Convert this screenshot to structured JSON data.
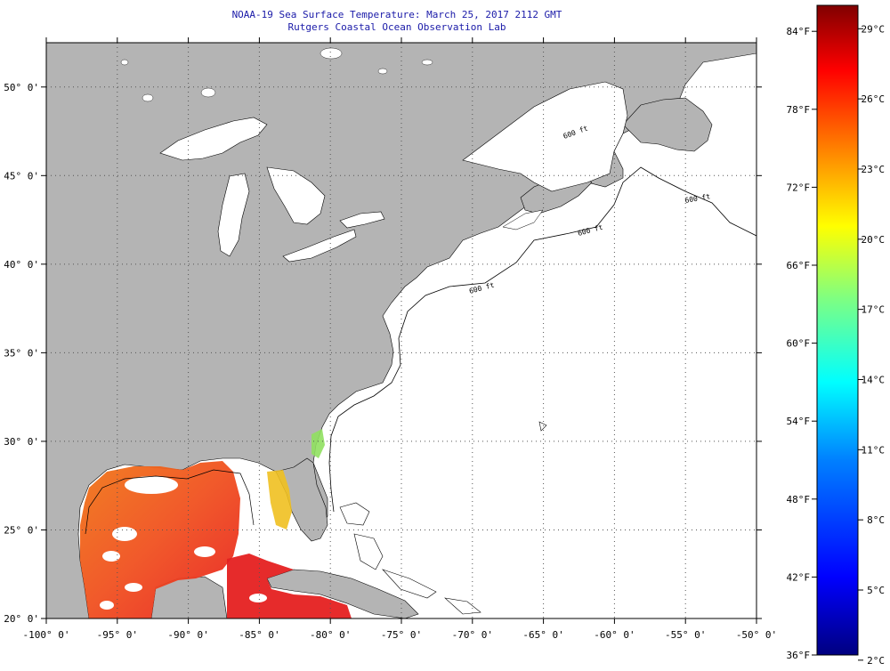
{
  "title": {
    "line1": "NOAA-19 Sea Surface Temperature:  March 25, 2017 2112 GMT",
    "line2": "Rutgers Coastal Ocean Observation Lab"
  },
  "map": {
    "lon_range": [
      -100,
      -50
    ],
    "lat_range": [
      20,
      52.5
    ],
    "lon_ticks": [
      {
        "value": -100,
        "label": "-100° 0'"
      },
      {
        "value": -95,
        "label": "-95° 0'"
      },
      {
        "value": -90,
        "label": "-90° 0'"
      },
      {
        "value": -85,
        "label": "-85° 0'"
      },
      {
        "value": -80,
        "label": "-80° 0'"
      },
      {
        "value": -75,
        "label": "-75° 0'"
      },
      {
        "value": -70,
        "label": "-70° 0'"
      },
      {
        "value": -65,
        "label": "-65° 0'"
      },
      {
        "value": -60,
        "label": "-60° 0'"
      },
      {
        "value": -55,
        "label": "-55° 0'"
      },
      {
        "value": -50,
        "label": "-50° 0'"
      }
    ],
    "lat_ticks": [
      {
        "value": 20,
        "label": "20° 0'"
      },
      {
        "value": 25,
        "label": "25° 0'"
      },
      {
        "value": 30,
        "label": "30° 0'"
      },
      {
        "value": 35,
        "label": "35° 0'"
      },
      {
        "value": 40,
        "label": "40° 0'"
      },
      {
        "value": 45,
        "label": "45° 0'"
      },
      {
        "value": 50,
        "label": "50° 0'"
      }
    ],
    "grid": "dotted",
    "land_color": "#b4b4b4",
    "ocean_color": "#ffffff",
    "isobath_label": "600 ft"
  },
  "colorbar": {
    "min_f": 36,
    "max_f": 86,
    "stops": [
      "#000080",
      "#0000ff",
      "#0080ff",
      "#00ffff",
      "#80ff80",
      "#ffff00",
      "#ff8000",
      "#ff0000",
      "#800000"
    ],
    "f_labels": [
      {
        "value": 84,
        "label": "84°F"
      },
      {
        "value": 78,
        "label": "78°F"
      },
      {
        "value": 72,
        "label": "72°F"
      },
      {
        "value": 66,
        "label": "66°F"
      },
      {
        "value": 60,
        "label": "60°F"
      },
      {
        "value": 54,
        "label": "54°F"
      },
      {
        "value": 48,
        "label": "48°F"
      },
      {
        "value": 42,
        "label": "42°F"
      },
      {
        "value": 36,
        "label": "36°F"
      }
    ],
    "c_labels": [
      {
        "value": 29,
        "label": "29°C"
      },
      {
        "value": 26,
        "label": "26°C"
      },
      {
        "value": 23,
        "label": "23°C"
      },
      {
        "value": 20,
        "label": "20°C"
      },
      {
        "value": 17,
        "label": "17°C"
      },
      {
        "value": 14,
        "label": "14°C"
      },
      {
        "value": 11,
        "label": "11°C"
      },
      {
        "value": 8,
        "label": "8°C"
      },
      {
        "value": 5,
        "label": "5°C"
      },
      {
        "value": 2,
        "label": "2°C"
      }
    ]
  }
}
